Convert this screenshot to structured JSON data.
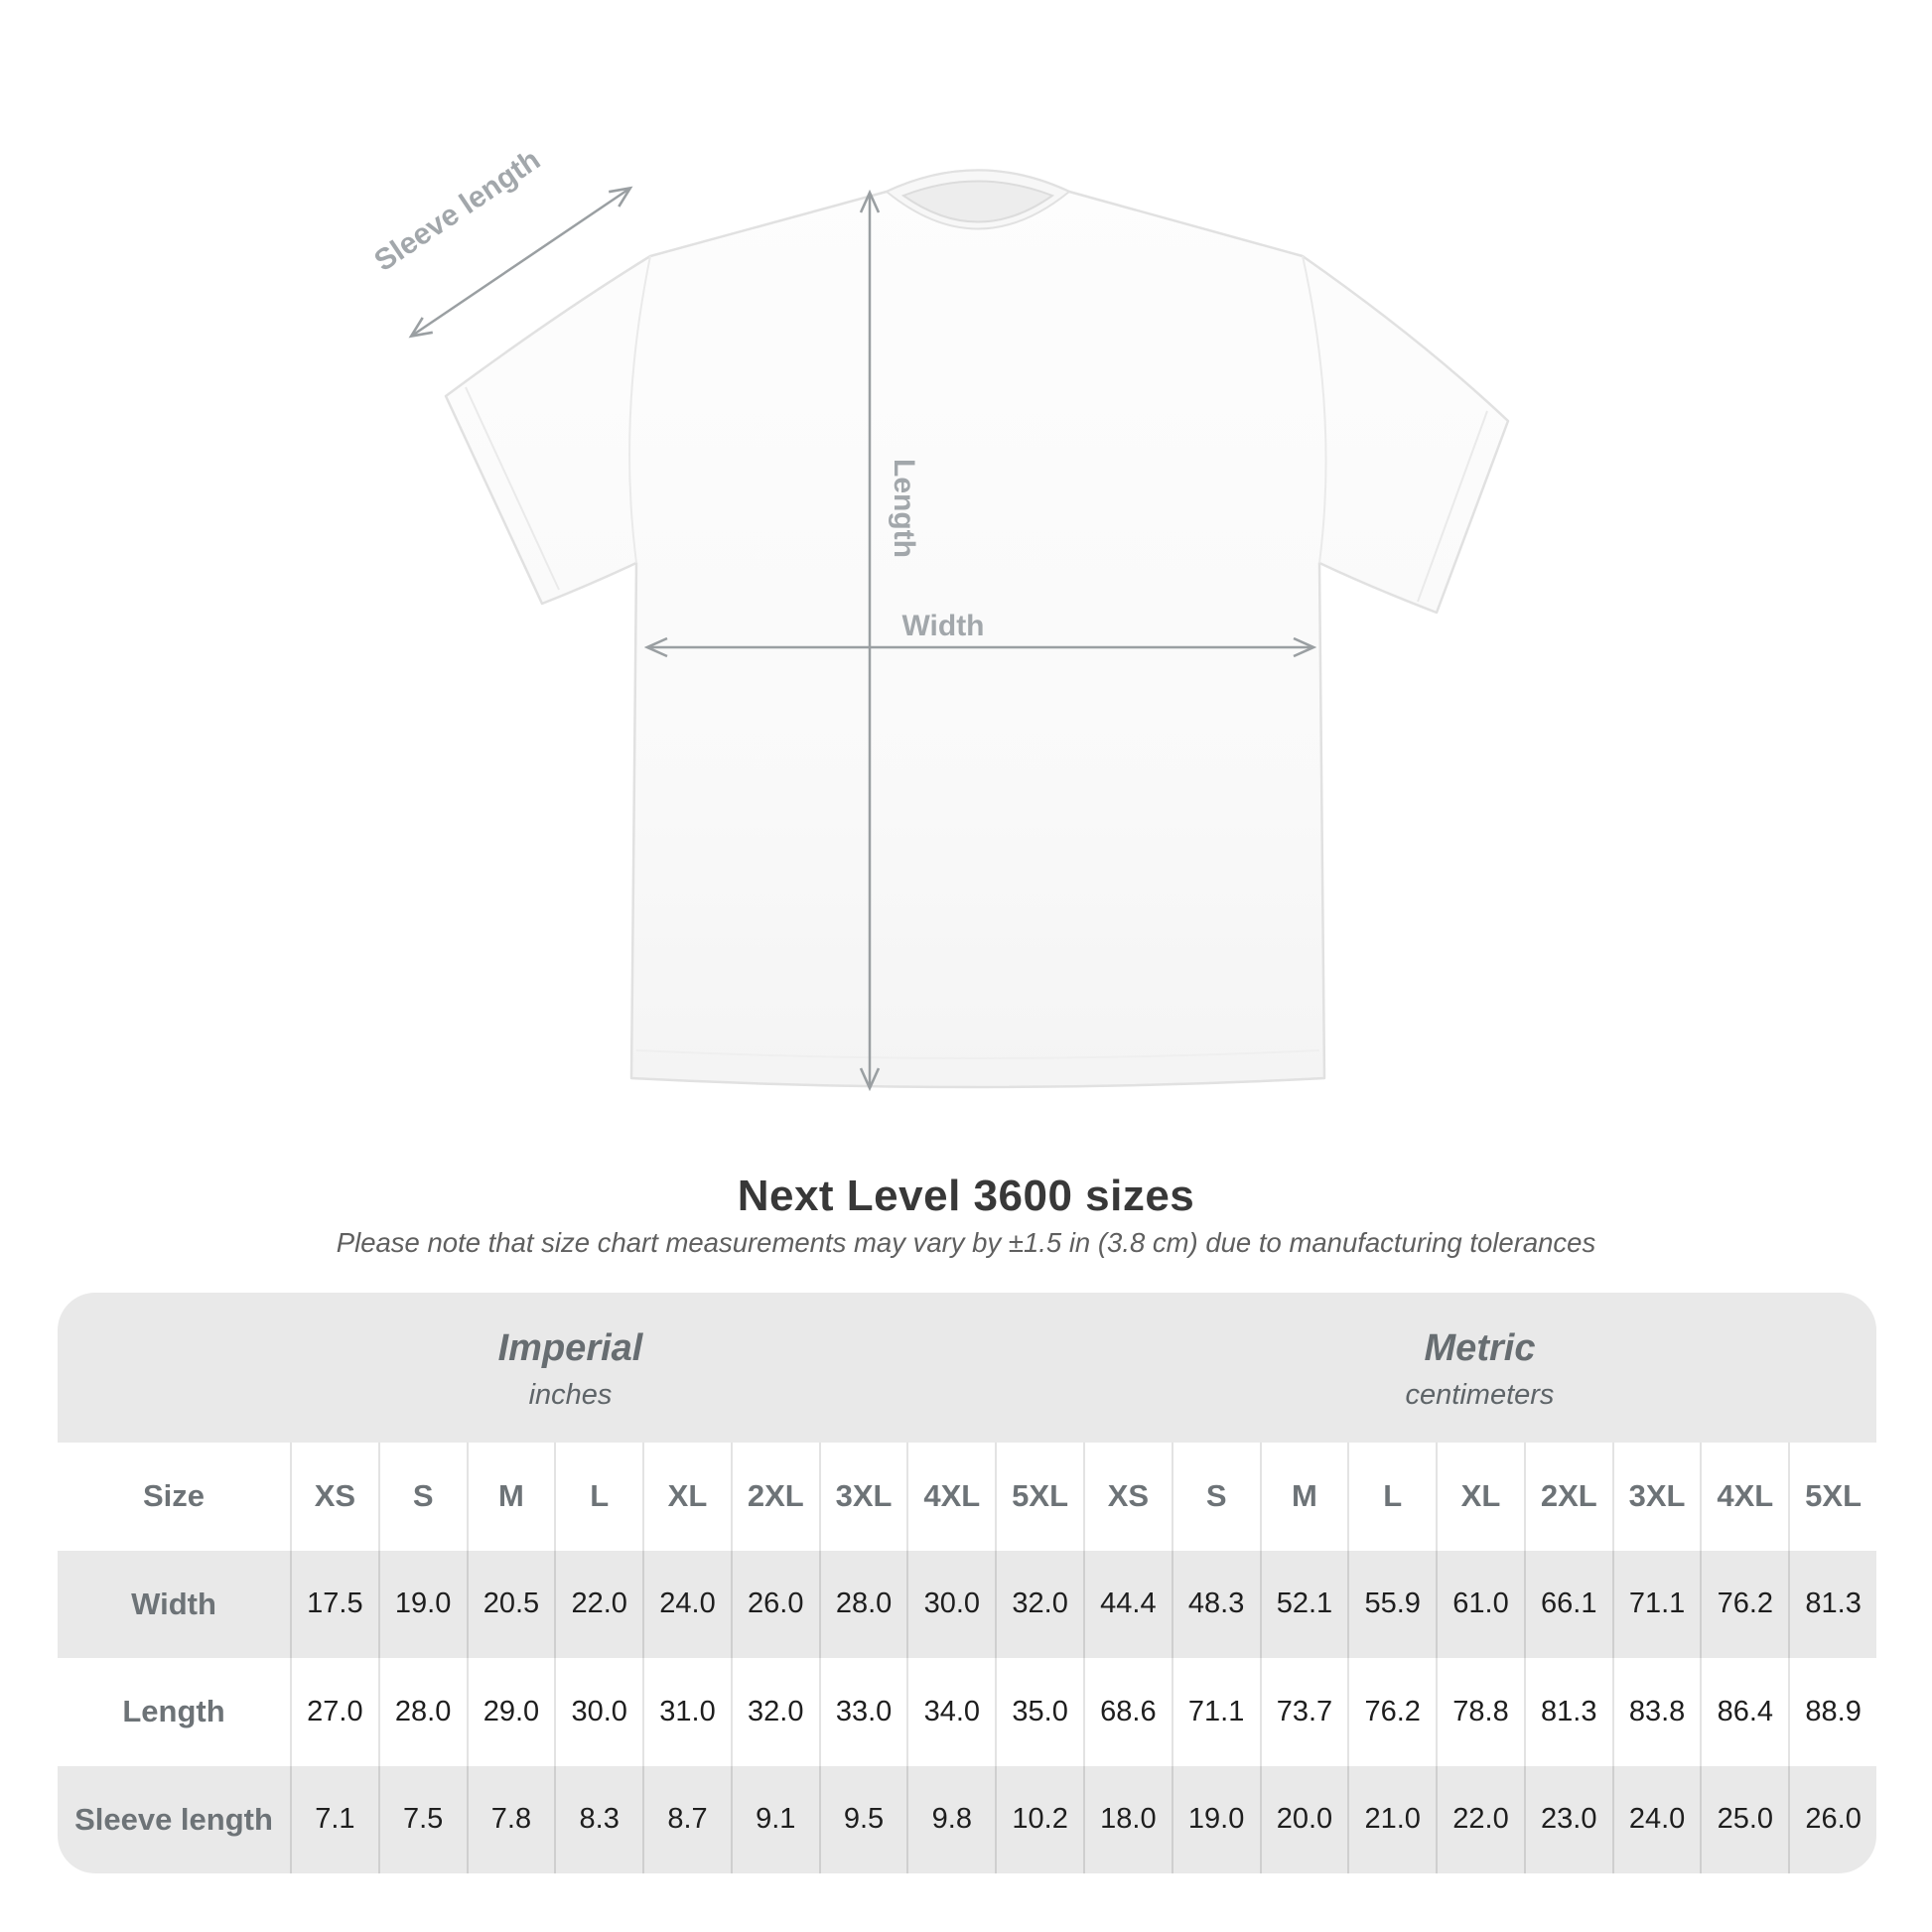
{
  "title": "Next Level 3600 sizes",
  "subtitle": "Please note that size chart measurements may vary by ±1.5 in (3.8 cm) due to manufacturing tolerances",
  "diagram": {
    "sleeve_label": "Sleeve length",
    "length_label": "Length",
    "width_label": "Width"
  },
  "table": {
    "size_header_label": "Size",
    "sizes": [
      "XS",
      "S",
      "M",
      "L",
      "XL",
      "2XL",
      "3XL",
      "4XL",
      "5XL"
    ],
    "sections": [
      {
        "name": "Imperial",
        "unit": "inches"
      },
      {
        "name": "Metric",
        "unit": "centimeters"
      }
    ],
    "rows": [
      {
        "label": "Width",
        "imperial": [
          "17.5",
          "19.0",
          "20.5",
          "22.0",
          "24.0",
          "26.0",
          "28.0",
          "30.0",
          "32.0"
        ],
        "metric": [
          "44.4",
          "48.3",
          "52.1",
          "55.9",
          "61.0",
          "66.1",
          "71.1",
          "76.2",
          "81.3"
        ]
      },
      {
        "label": "Length",
        "imperial": [
          "27.0",
          "28.0",
          "29.0",
          "30.0",
          "31.0",
          "32.0",
          "33.0",
          "34.0",
          "35.0"
        ],
        "metric": [
          "68.6",
          "71.1",
          "73.7",
          "76.2",
          "78.8",
          "81.3",
          "83.8",
          "86.4",
          "88.9"
        ]
      },
      {
        "label": "Sleeve length",
        "imperial": [
          "7.1",
          "7.5",
          "7.8",
          "8.3",
          "8.7",
          "9.1",
          "9.5",
          "9.8",
          "10.2"
        ],
        "metric": [
          "18.0",
          "19.0",
          "20.0",
          "21.0",
          "22.0",
          "23.0",
          "24.0",
          "25.0",
          "26.0"
        ]
      }
    ]
  },
  "chart_data": {
    "type": "table",
    "title": "Next Level 3600 sizes",
    "note": "Please note that size chart measurements may vary by ±1.5 in (3.8 cm) due to manufacturing tolerances",
    "columns": [
      "XS",
      "S",
      "M",
      "L",
      "XL",
      "2XL",
      "3XL",
      "4XL",
      "5XL"
    ],
    "sections": [
      {
        "name": "Imperial",
        "unit": "inches",
        "rows": [
          {
            "label": "Width",
            "values": [
              17.5,
              19.0,
              20.5,
              22.0,
              24.0,
              26.0,
              28.0,
              30.0,
              32.0
            ]
          },
          {
            "label": "Length",
            "values": [
              27.0,
              28.0,
              29.0,
              30.0,
              31.0,
              32.0,
              33.0,
              34.0,
              35.0
            ]
          },
          {
            "label": "Sleeve length",
            "values": [
              7.1,
              7.5,
              7.8,
              8.3,
              8.7,
              9.1,
              9.5,
              9.8,
              10.2
            ]
          }
        ]
      },
      {
        "name": "Metric",
        "unit": "centimeters",
        "rows": [
          {
            "label": "Width",
            "values": [
              44.4,
              48.3,
              52.1,
              55.9,
              61.0,
              66.1,
              71.1,
              76.2,
              81.3
            ]
          },
          {
            "label": "Length",
            "values": [
              68.6,
              71.1,
              73.7,
              76.2,
              78.8,
              81.3,
              83.8,
              86.4,
              88.9
            ]
          },
          {
            "label": "Sleeve length",
            "values": [
              18.0,
              19.0,
              20.0,
              21.0,
              22.0,
              23.0,
              24.0,
              25.0,
              26.0
            ]
          }
        ]
      }
    ]
  },
  "colors": {
    "page_bg": "#ffffff",
    "table_bg": "#e9e9e9",
    "row_stripe": "#ffffff",
    "heading_text": "#6d7377",
    "value_text": "#1e1e1e",
    "title_text": "#383838",
    "note_text": "#5f5f5f",
    "annotation": "#a2a7ab",
    "arrow": "#9a9fa2",
    "shirt_outline": "#e1e1e1"
  }
}
